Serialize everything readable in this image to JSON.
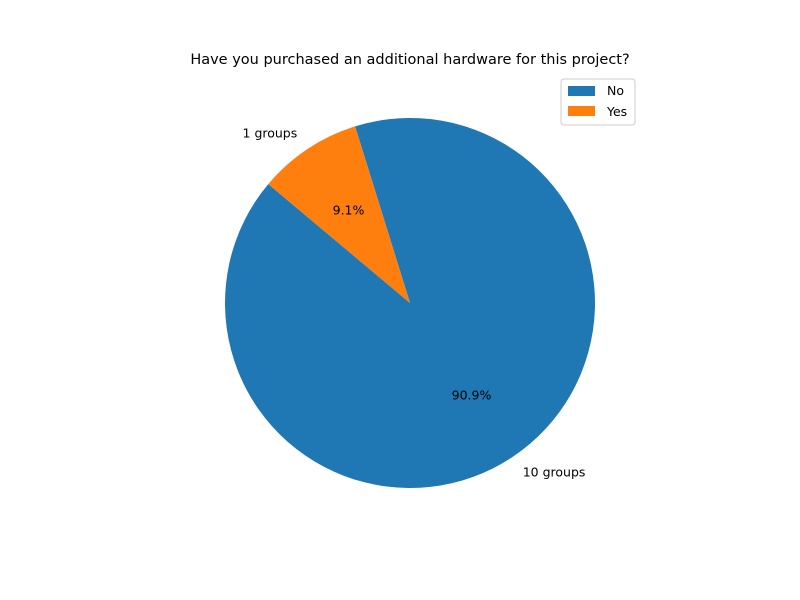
{
  "chart_data": {
    "type": "pie",
    "title": "Have you purchased an additional hardware for this project?",
    "slices": [
      {
        "name": "No",
        "value": 10,
        "label": "10 groups",
        "percent_label": "90.9%",
        "color": "#1f77b4"
      },
      {
        "name": "Yes",
        "value": 1,
        "label": "1 groups",
        "percent_label": "9.1%",
        "color": "#ff7f0e"
      }
    ],
    "start_angle_deg": 140,
    "counterclockwise": true,
    "legend": {
      "placement": "top-right",
      "entries": [
        "No",
        "Yes"
      ]
    }
  }
}
